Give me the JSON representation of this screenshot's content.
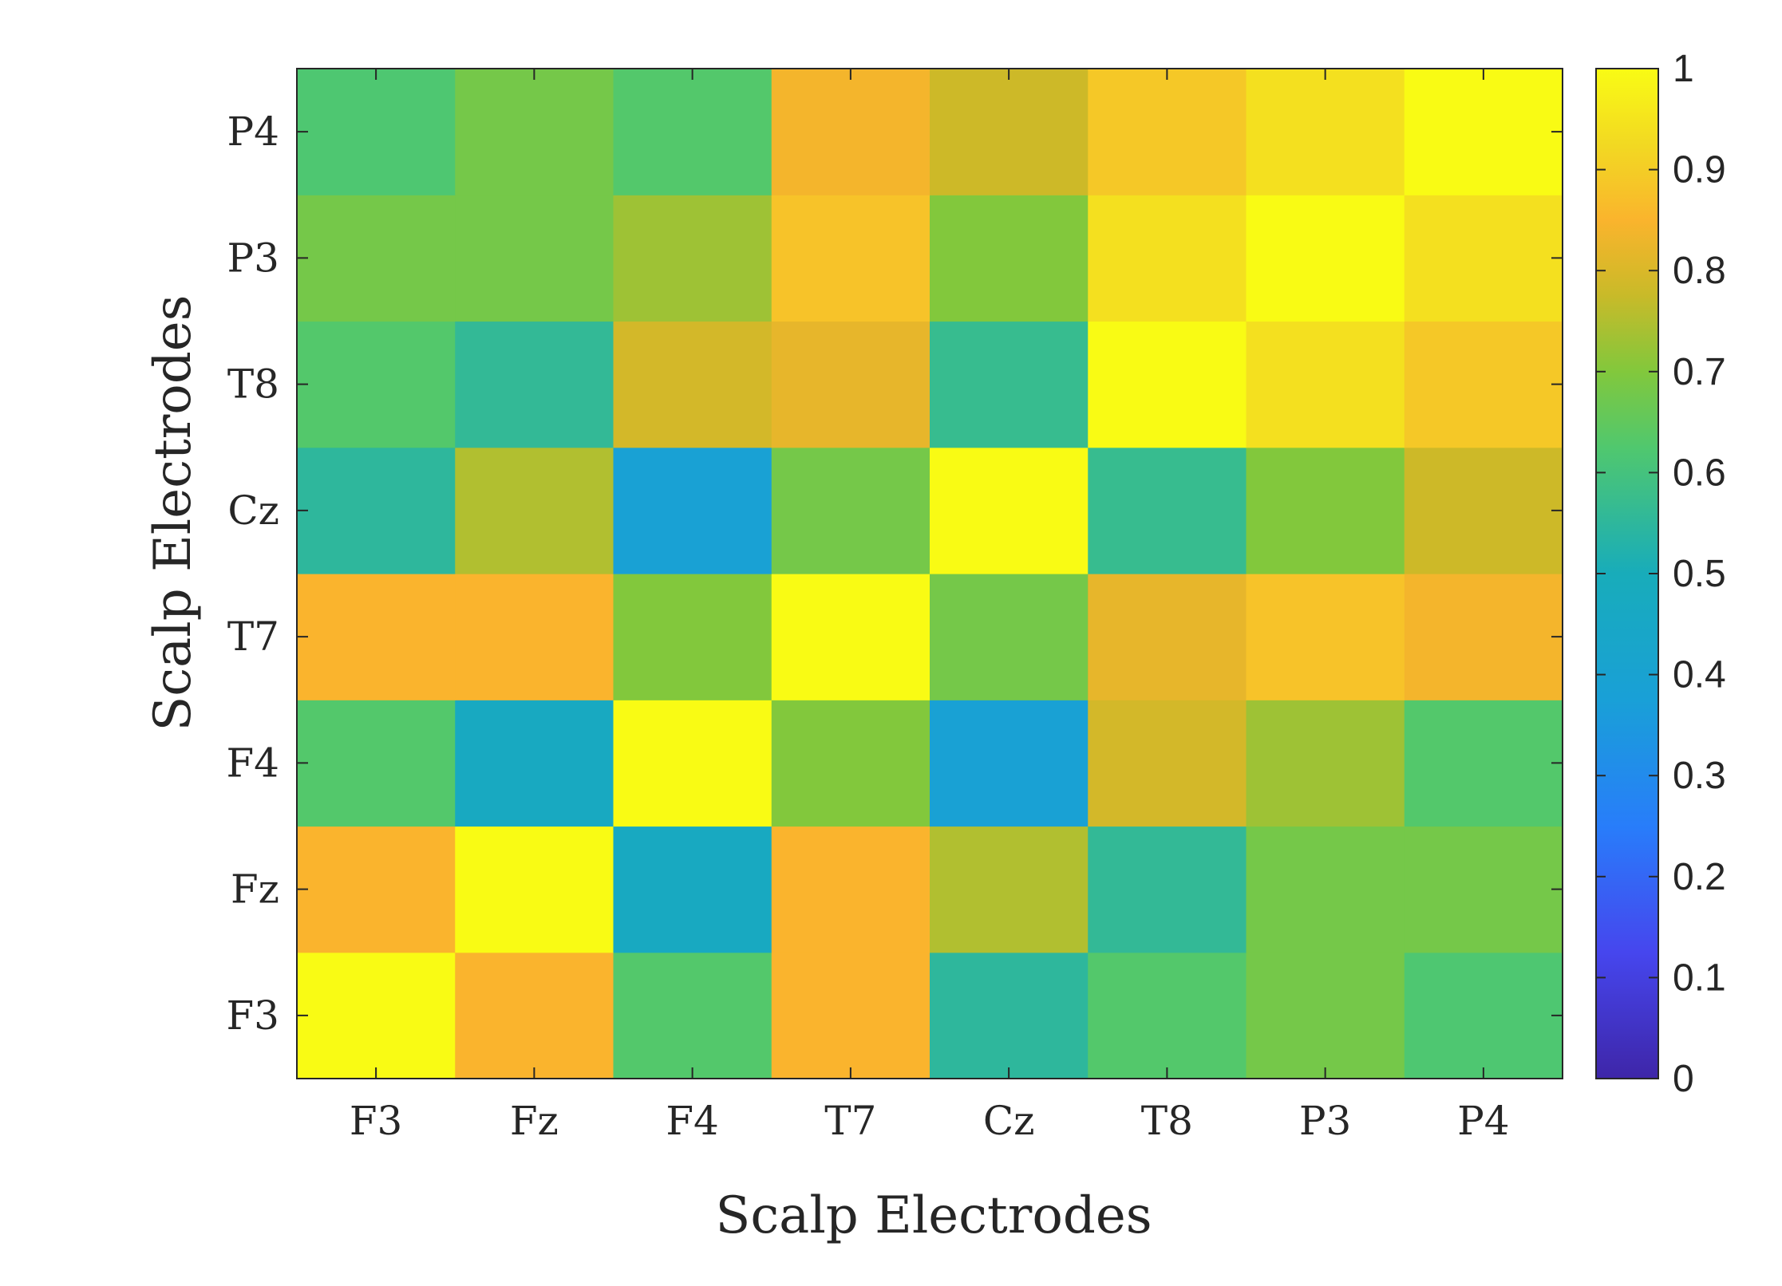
{
  "chart_data": {
    "type": "heatmap",
    "title": "",
    "xlabel": "Scalp Electrodes",
    "ylabel": "Scalp Electrodes",
    "x_categories": [
      "F3",
      "Fz",
      "F4",
      "T7",
      "Cz",
      "T8",
      "P3",
      "P4"
    ],
    "y_categories": [
      "F3",
      "Fz",
      "F4",
      "T7",
      "Cz",
      "T8",
      "P3",
      "P4"
    ],
    "values": [
      [
        1.0,
        0.85,
        0.63,
        0.85,
        0.55,
        0.63,
        0.68,
        0.62
      ],
      [
        0.85,
        1.0,
        0.47,
        0.85,
        0.75,
        0.56,
        0.68,
        0.68
      ],
      [
        0.63,
        0.47,
        1.0,
        0.7,
        0.39,
        0.79,
        0.73,
        0.63
      ],
      [
        0.85,
        0.85,
        0.7,
        1.0,
        0.68,
        0.82,
        0.88,
        0.84
      ],
      [
        0.55,
        0.75,
        0.39,
        0.68,
        1.0,
        0.57,
        0.7,
        0.78
      ],
      [
        0.63,
        0.56,
        0.79,
        0.82,
        0.57,
        1.0,
        0.94,
        0.89
      ],
      [
        0.68,
        0.68,
        0.73,
        0.88,
        0.7,
        0.94,
        1.0,
        0.94
      ],
      [
        0.62,
        0.68,
        0.63,
        0.84,
        0.78,
        0.89,
        0.94,
        1.0
      ]
    ],
    "colorbar": {
      "range": [
        0,
        1
      ],
      "ticks": [
        "0",
        "0.1",
        "0.2",
        "0.3",
        "0.4",
        "0.5",
        "0.6",
        "0.7",
        "0.8",
        "0.9",
        "1"
      ],
      "colormap": "parula"
    }
  }
}
